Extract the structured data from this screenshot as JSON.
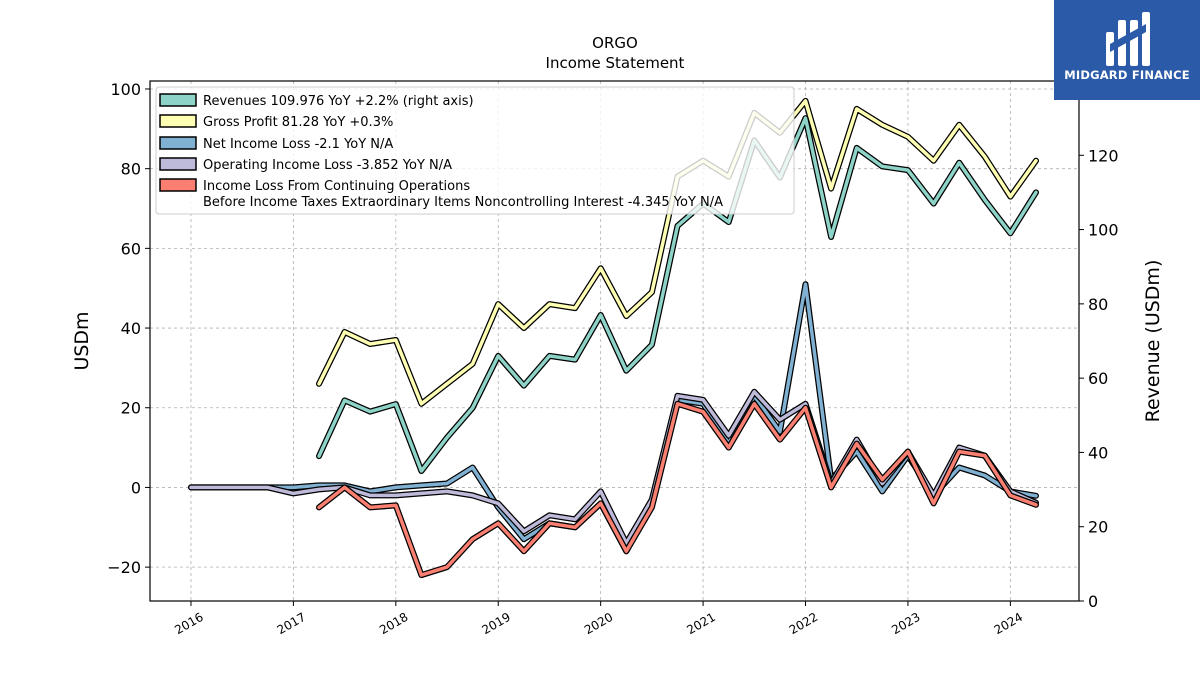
{
  "chart_data": {
    "type": "line",
    "title": "ORGO",
    "subtitle": "Income Statement",
    "ylabel": "USDm",
    "y2label": "Revenue (USDm)",
    "ylim": [
      -28.5,
      102
    ],
    "y2lim": [
      0,
      140
    ],
    "yticks": [
      -20,
      0,
      20,
      40,
      60,
      80,
      100
    ],
    "y2ticks": [
      0,
      20,
      40,
      60,
      80,
      100,
      120
    ],
    "xlim": [
      2015.6,
      2024.67
    ],
    "xticks": [
      "2016",
      "2017",
      "2018",
      "2019",
      "2020",
      "2021",
      "2022",
      "2023",
      "2024"
    ],
    "grid": true,
    "legend_position": "top-left",
    "series": [
      {
        "name": "Revenues",
        "legend": "Revenues  109.976 YoY +2.2% (right axis)",
        "axis": "right",
        "color": "#8dd3c7",
        "points": [
          [
            2017.25,
            39
          ],
          [
            2017.5,
            54
          ],
          [
            2017.75,
            51
          ],
          [
            2018.0,
            53
          ],
          [
            2018.25,
            35
          ],
          [
            2018.5,
            44
          ],
          [
            2018.75,
            52
          ],
          [
            2019.0,
            66
          ],
          [
            2019.25,
            58
          ],
          [
            2019.5,
            66
          ],
          [
            2019.75,
            65
          ],
          [
            2020.0,
            77
          ],
          [
            2020.25,
            62
          ],
          [
            2020.5,
            69
          ],
          [
            2020.75,
            101
          ],
          [
            2021.0,
            107
          ],
          [
            2021.25,
            102
          ],
          [
            2021.5,
            124
          ],
          [
            2021.75,
            114
          ],
          [
            2022.0,
            130
          ],
          [
            2022.25,
            98
          ],
          [
            2022.5,
            122
          ],
          [
            2022.75,
            117
          ],
          [
            2023.0,
            116
          ],
          [
            2023.25,
            107
          ],
          [
            2023.5,
            118
          ],
          [
            2023.75,
            108
          ],
          [
            2024.0,
            99
          ],
          [
            2024.25,
            110
          ]
        ]
      },
      {
        "name": "Gross Profit",
        "legend": "Gross Profit  81.28 YoY +0.3%",
        "axis": "left",
        "color": "#ffffb3",
        "points": [
          [
            2017.25,
            26
          ],
          [
            2017.5,
            39
          ],
          [
            2017.75,
            36
          ],
          [
            2018.0,
            37
          ],
          [
            2018.25,
            21
          ],
          [
            2018.5,
            26
          ],
          [
            2018.75,
            31
          ],
          [
            2019.0,
            46
          ],
          [
            2019.25,
            40
          ],
          [
            2019.5,
            46
          ],
          [
            2019.75,
            45
          ],
          [
            2020.0,
            55
          ],
          [
            2020.25,
            43
          ],
          [
            2020.5,
            49
          ],
          [
            2020.75,
            78
          ],
          [
            2021.0,
            82
          ],
          [
            2021.25,
            78
          ],
          [
            2021.5,
            94
          ],
          [
            2021.75,
            89
          ],
          [
            2022.0,
            97
          ],
          [
            2022.25,
            75
          ],
          [
            2022.5,
            95
          ],
          [
            2022.75,
            91
          ],
          [
            2023.0,
            88
          ],
          [
            2023.25,
            82
          ],
          [
            2023.5,
            91
          ],
          [
            2023.75,
            83
          ],
          [
            2024.0,
            73
          ],
          [
            2024.25,
            82
          ]
        ]
      },
      {
        "name": "Net Income Loss",
        "legend": "Net Income Loss  -2.1 YoY N/A",
        "axis": "left",
        "color": "#80b1d3",
        "points": [
          [
            2016.0,
            0
          ],
          [
            2016.25,
            0
          ],
          [
            2016.5,
            0
          ],
          [
            2016.75,
            0
          ],
          [
            2017.0,
            0
          ],
          [
            2017.25,
            0.5
          ],
          [
            2017.5,
            0.5
          ],
          [
            2017.75,
            -1
          ],
          [
            2018.0,
            0
          ],
          [
            2018.25,
            0.5
          ],
          [
            2018.5,
            1
          ],
          [
            2018.75,
            5
          ],
          [
            2019.0,
            -5
          ],
          [
            2019.25,
            -13
          ],
          [
            2019.5,
            -9
          ],
          [
            2019.75,
            -10
          ],
          [
            2020.0,
            -4
          ],
          [
            2020.25,
            -16
          ],
          [
            2020.5,
            -4
          ],
          [
            2020.75,
            22
          ],
          [
            2021.0,
            21
          ],
          [
            2021.25,
            11
          ],
          [
            2021.5,
            23
          ],
          [
            2021.75,
            14
          ],
          [
            2022.0,
            51
          ],
          [
            2022.25,
            2
          ],
          [
            2022.5,
            9
          ],
          [
            2022.75,
            -1
          ],
          [
            2023.0,
            8
          ],
          [
            2023.25,
            -2
          ],
          [
            2023.5,
            5
          ],
          [
            2023.75,
            3
          ],
          [
            2024.0,
            -1
          ],
          [
            2024.25,
            -2.1
          ]
        ]
      },
      {
        "name": "Operating Income Loss",
        "legend": "Operating Income Loss  -3.852 YoY N/A",
        "axis": "left",
        "color": "#bebada",
        "points": [
          [
            2016.0,
            0
          ],
          [
            2016.25,
            0
          ],
          [
            2016.5,
            0
          ],
          [
            2016.75,
            0
          ],
          [
            2017.0,
            -1.5
          ],
          [
            2017.25,
            -0.5
          ],
          [
            2017.5,
            0
          ],
          [
            2017.75,
            -2
          ],
          [
            2018.0,
            -2
          ],
          [
            2018.25,
            -1.5
          ],
          [
            2018.5,
            -1
          ],
          [
            2018.75,
            -2
          ],
          [
            2019.0,
            -4
          ],
          [
            2019.25,
            -11
          ],
          [
            2019.5,
            -7
          ],
          [
            2019.75,
            -8
          ],
          [
            2020.0,
            -1
          ],
          [
            2020.25,
            -14
          ],
          [
            2020.5,
            -3
          ],
          [
            2020.75,
            23
          ],
          [
            2021.0,
            22
          ],
          [
            2021.25,
            13
          ],
          [
            2021.5,
            24
          ],
          [
            2021.75,
            17
          ],
          [
            2022.0,
            21
          ],
          [
            2022.25,
            1
          ],
          [
            2022.5,
            12
          ],
          [
            2022.75,
            1
          ],
          [
            2023.0,
            9
          ],
          [
            2023.25,
            -2
          ],
          [
            2023.5,
            10
          ],
          [
            2023.75,
            8
          ],
          [
            2024.0,
            -1
          ],
          [
            2024.25,
            -3.852
          ]
        ]
      },
      {
        "name": "Income Loss From Continuing Operations Before Income Taxes Extraordinary Items Noncontrolling Interest",
        "legend": [
          "Income Loss From Continuing Operations",
          "Before Income Taxes Extraordinary Items Noncontrolling Interest  -4.345 YoY N/A"
        ],
        "axis": "left",
        "color": "#fb8072",
        "points": [
          [
            2017.25,
            -5
          ],
          [
            2017.5,
            0
          ],
          [
            2017.75,
            -5
          ],
          [
            2018.0,
            -4.5
          ],
          [
            2018.25,
            -22
          ],
          [
            2018.5,
            -20
          ],
          [
            2018.75,
            -13
          ],
          [
            2019.0,
            -9
          ],
          [
            2019.25,
            -16
          ],
          [
            2019.5,
            -9
          ],
          [
            2019.75,
            -10
          ],
          [
            2020.0,
            -4
          ],
          [
            2020.25,
            -16
          ],
          [
            2020.5,
            -5
          ],
          [
            2020.75,
            21
          ],
          [
            2021.0,
            19
          ],
          [
            2021.25,
            10
          ],
          [
            2021.5,
            21
          ],
          [
            2021.75,
            12
          ],
          [
            2022.0,
            20
          ],
          [
            2022.25,
            0
          ],
          [
            2022.5,
            11
          ],
          [
            2022.75,
            2
          ],
          [
            2023.0,
            9
          ],
          [
            2023.25,
            -4
          ],
          [
            2023.5,
            9
          ],
          [
            2023.75,
            8
          ],
          [
            2024.0,
            -2
          ],
          [
            2024.25,
            -4.345
          ]
        ]
      }
    ]
  },
  "logo": {
    "text": "MIDGARD FINANCE",
    "color": "#2b5ba8"
  }
}
